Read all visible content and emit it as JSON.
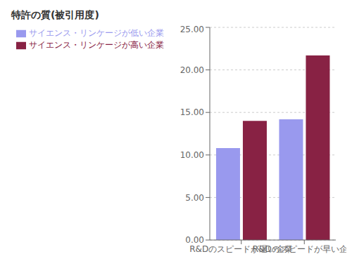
{
  "chart_data": {
    "type": "bar",
    "title": "特許の質(被引用度)",
    "categories": [
      "R&Dのスピードが遅い企業",
      "R&Dのスピードが早い企業"
    ],
    "series": [
      {
        "name": "サイエンス・リンケージが低い企業",
        "color": "#9999ee",
        "values": [
          10.8,
          14.2
        ]
      },
      {
        "name": "サイエンス・リンケージが高い企業",
        "color": "#882244",
        "values": [
          14.0,
          21.7
        ]
      }
    ],
    "ylim": [
      0,
      25
    ],
    "yticks": [
      {
        "value": 0,
        "label": "0.00"
      },
      {
        "value": 5,
        "label": "5.00"
      },
      {
        "value": 10,
        "label": "10.00"
      },
      {
        "value": 15,
        "label": "15.00"
      },
      {
        "value": 20,
        "label": "20.00"
      },
      {
        "value": 25,
        "label": "25.00"
      }
    ],
    "grid": true,
    "legend": "upper left"
  }
}
